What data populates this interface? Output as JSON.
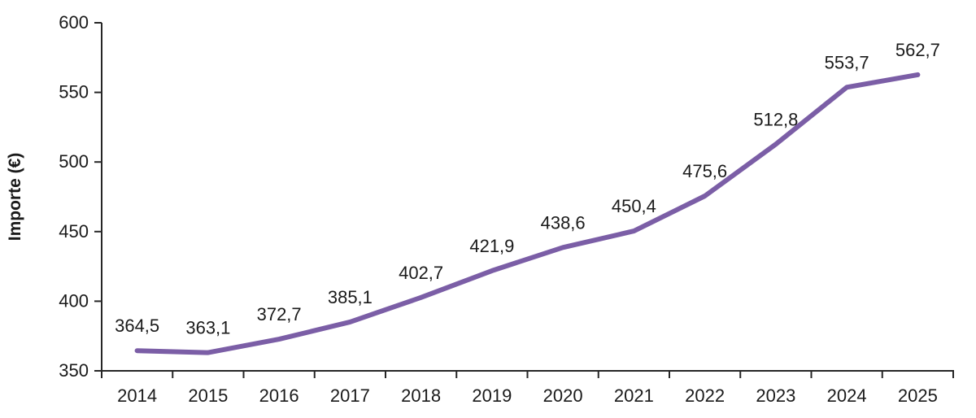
{
  "chart_data": {
    "type": "line",
    "title": "",
    "xlabel": "",
    "ylabel": "Importe (€)",
    "categories": [
      "2014",
      "2015",
      "2016",
      "2017",
      "2018",
      "2019",
      "2020",
      "2021",
      "2022",
      "2023",
      "2024",
      "2025"
    ],
    "series": [
      {
        "name": "Importe",
        "values": [
          364.5,
          363.1,
          372.7,
          385.1,
          402.7,
          421.9,
          438.6,
          450.4,
          475.6,
          512.8,
          553.7,
          562.7
        ],
        "labels": [
          "364,5",
          "363,1",
          "372,7",
          "385,1",
          "402,7",
          "421,9",
          "438,6",
          "450,4",
          "475,6",
          "512,8",
          "553,7",
          "562,7"
        ],
        "color": "#7b5ea6"
      }
    ],
    "ylim": [
      350,
      600
    ],
    "yticks": [
      350,
      400,
      450,
      500,
      550,
      600
    ],
    "grid": false,
    "legend": "none",
    "axis_color": "#262626",
    "label_color": "#1a1a1a"
  }
}
